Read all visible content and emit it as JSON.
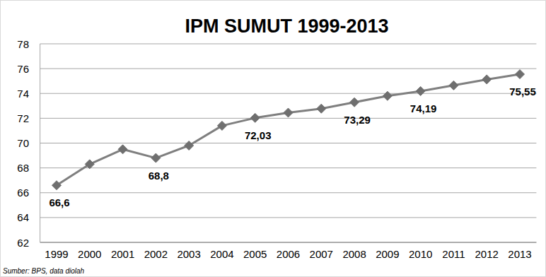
{
  "chart_data": {
    "type": "line",
    "title": "IPM SUMUT 1999-2013",
    "categories": [
      "1999",
      "2000",
      "2001",
      "2002",
      "2003",
      "2004",
      "2005",
      "2006",
      "2007",
      "2008",
      "2009",
      "2010",
      "2011",
      "2012",
      "2013"
    ],
    "values": [
      66.6,
      68.3,
      69.5,
      68.8,
      69.8,
      71.4,
      72.03,
      72.45,
      72.78,
      73.29,
      73.8,
      74.19,
      74.65,
      75.13,
      75.55
    ],
    "value_labels": [
      "66,6",
      null,
      null,
      "68,8",
      null,
      null,
      "72,03",
      null,
      null,
      "73,29",
      null,
      "74,19",
      null,
      null,
      "75,55"
    ],
    "data_labels": true,
    "color": "#7f7f7f",
    "marker": "diamond",
    "ylim": [
      62,
      78
    ],
    "yticks": [
      62,
      64,
      66,
      68,
      70,
      72,
      74,
      76,
      78
    ],
    "grid": true,
    "annotations": [
      "Sumber: BPS, data diolah"
    ]
  }
}
